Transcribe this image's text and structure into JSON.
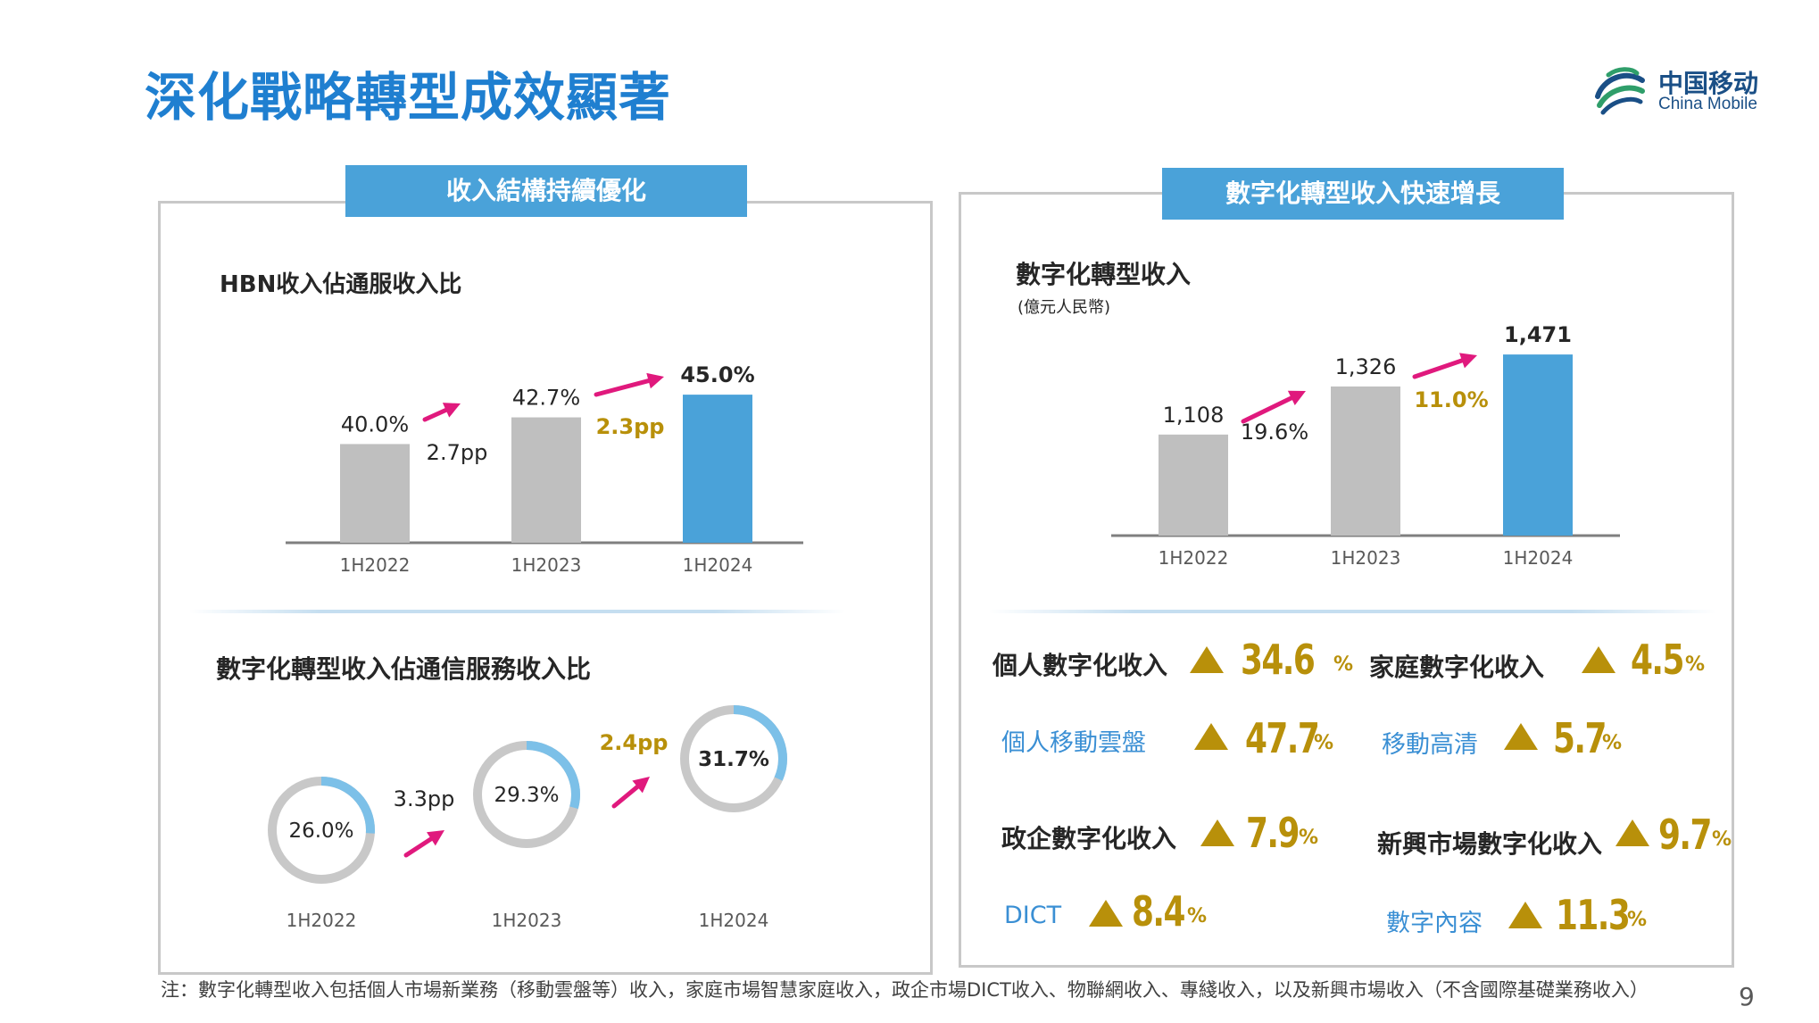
{
  "title": "深化戰略轉型成效顯著",
  "logo": {
    "cn": "中国移动",
    "en": "China Mobile"
  },
  "left_panel": {
    "header": "收入結構持續優化",
    "hbn_title": "HBN收入佔通服收入比",
    "donut_title": "數字化轉型收入佔通信服務收入比"
  },
  "right_panel": {
    "header": "數字化轉型收入快速增長",
    "chart_title": "數字化轉型收入",
    "unit": "(億元人民幣)",
    "metrics": [
      {
        "label": "個人數字化收入",
        "value": "34.6",
        "pct": "%",
        "sub": false
      },
      {
        "label": "家庭數字化收入",
        "value": "4.5",
        "pct": "%",
        "sub": false
      },
      {
        "label": "個人移動雲盤",
        "value": "47.7",
        "pct": "%",
        "sub": true
      },
      {
        "label": "移動高清",
        "value": "5.7",
        "pct": "%",
        "sub": true
      },
      {
        "label": "政企數字化收入",
        "value": "7.9",
        "pct": "%",
        "sub": false
      },
      {
        "label": "新興市場數字化收入",
        "value": "9.7",
        "pct": "%",
        "sub": false
      },
      {
        "label": "DICT",
        "value": "8.4",
        "pct": "%",
        "sub": true
      },
      {
        "label": "數字內容",
        "value": "11.3",
        "pct": "%",
        "sub": true
      }
    ]
  },
  "chart_data": [
    {
      "type": "bar",
      "title": "HBN收入佔通服收入比",
      "categories": [
        "1H2022",
        "1H2023",
        "1H2024"
      ],
      "values": [
        40.0,
        42.7,
        45.0
      ],
      "value_labels": [
        "40.0%",
        "42.7%",
        "45.0%"
      ],
      "changes": [
        "2.7pp",
        "2.3pp"
      ],
      "colors": [
        "#bfbfbf",
        "#bfbfbf",
        "#4aa2d9"
      ],
      "ylim": [
        30,
        47
      ]
    },
    {
      "type": "bar",
      "title": "數字化轉型收入",
      "ylabel": "(億元人民幣)",
      "categories": [
        "1H2022",
        "1H2023",
        "1H2024"
      ],
      "values": [
        1108,
        1326,
        1471
      ],
      "value_labels": [
        "1,108",
        "1,326",
        "1,471"
      ],
      "changes": [
        "19.6%",
        "11.0%"
      ],
      "colors": [
        "#bfbfbf",
        "#bfbfbf",
        "#4aa2d9"
      ],
      "ylim": [
        650,
        1520
      ]
    },
    {
      "type": "pie",
      "title": "數字化轉型收入佔通信服務收入比",
      "categories": [
        "1H2022",
        "1H2023",
        "1H2024"
      ],
      "values": [
        26.0,
        29.3,
        31.7
      ],
      "value_labels": [
        "26.0%",
        "29.3%",
        "31.7%"
      ],
      "changes": [
        "3.3pp",
        "2.4pp"
      ]
    }
  ],
  "footnote": "注：數字化轉型收入包括個人市場新業務（移動雲盤等）收入，家庭市場智慧家庭收入，政企市場DICT收入、物聯網收入、專綫收入，以及新興市場收入（不含國際基礎業務收入）",
  "page_number": "9",
  "colors": {
    "accent": "#1f7fd0",
    "bar_grey": "#bfbfbf",
    "bar_blue": "#4aa2d9",
    "arrow": "#e0197d",
    "gold": "#b8900a",
    "donut_track": "#c8c8c8",
    "donut_arc": "#7cc0e8"
  }
}
